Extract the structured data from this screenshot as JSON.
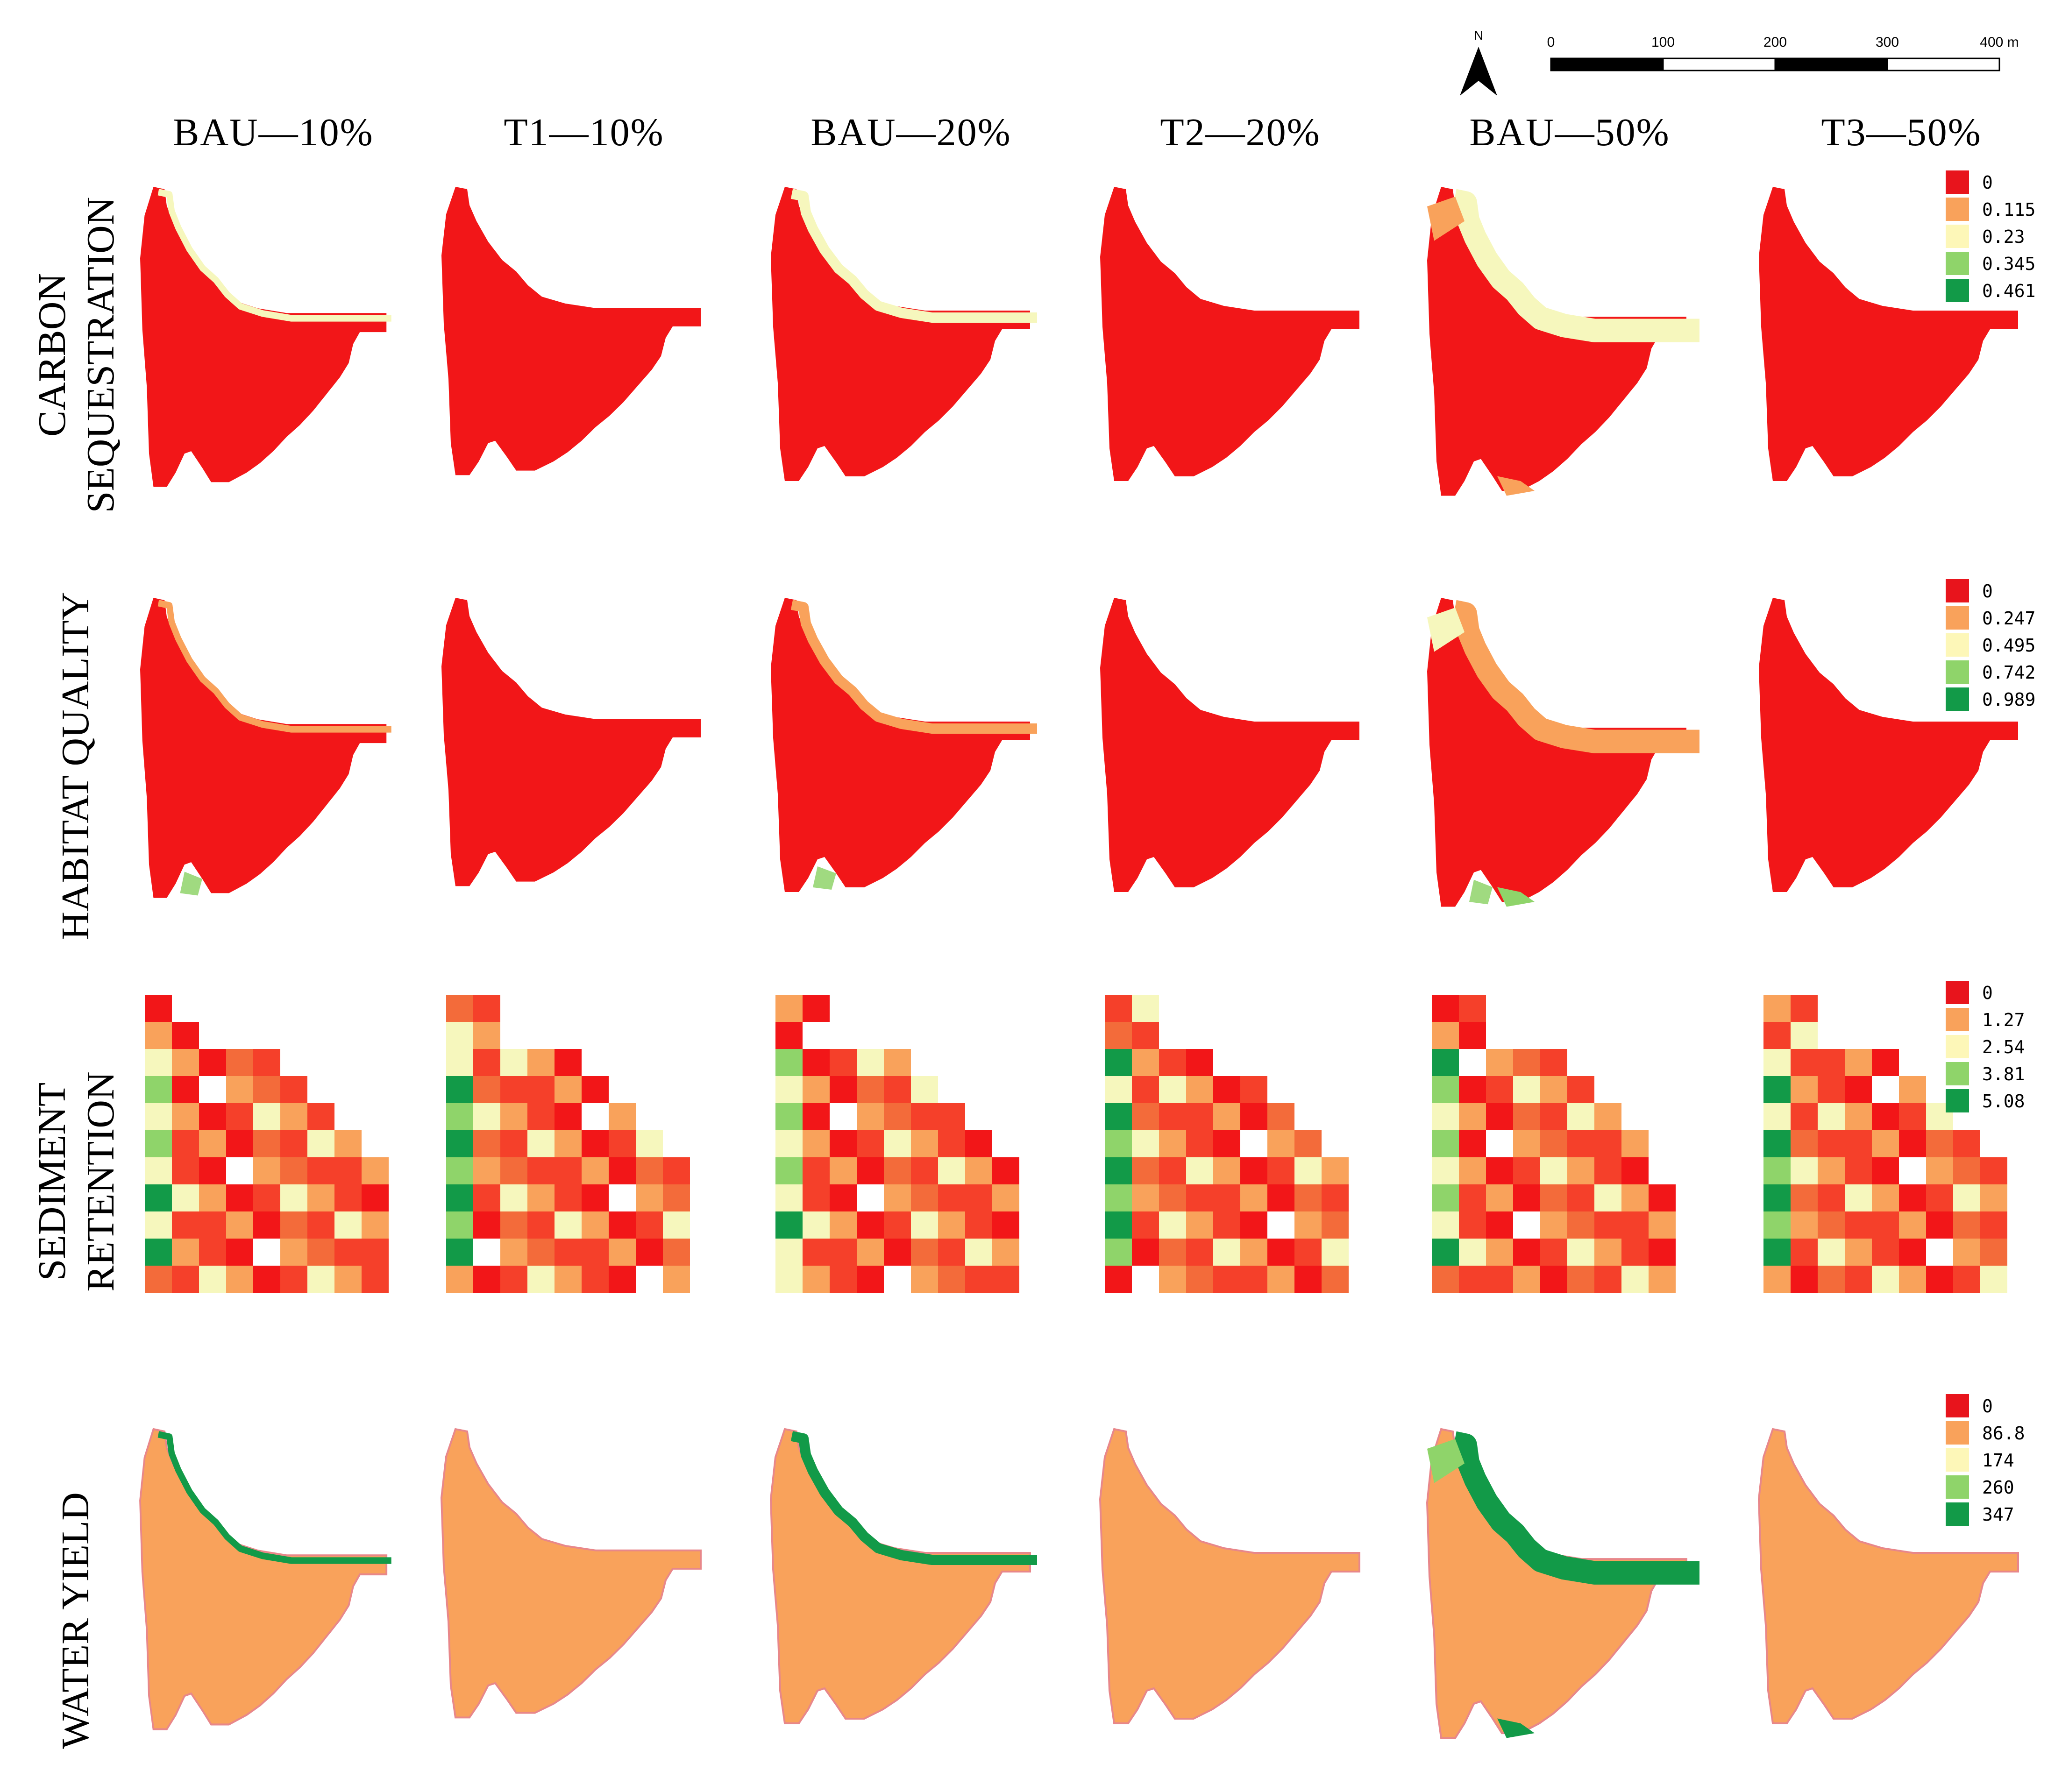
{
  "north_arrow": {
    "label": "N"
  },
  "scale_bar": {
    "ticks": [
      "0",
      "100",
      "200",
      "300",
      "400 m"
    ]
  },
  "columns": [
    "BAU—10%",
    "T1—10%",
    "BAU—20%",
    "T2—20%",
    "BAU—50%",
    "T3—50%"
  ],
  "rows": [
    {
      "label_line1": "CARBON",
      "label_line2": "SEQUESTRATION",
      "legend": [
        "0",
        "0.115",
        "0.23",
        "0.345",
        "0.461"
      ]
    },
    {
      "label_line1": "HABITAT QUALITY",
      "label_line2": "",
      "legend": [
        "0",
        "0.247",
        "0.495",
        "0.742",
        "0.989"
      ]
    },
    {
      "label_line1": "SEDIMENT",
      "label_line2": "RETENTION",
      "legend": [
        "0",
        "1.27",
        "2.54",
        "3.81",
        "5.08"
      ]
    },
    {
      "label_line1": "WATER YIELD",
      "label_line2": "",
      "legend": [
        "0",
        "86.8",
        "174",
        "260",
        "347"
      ]
    }
  ],
  "legend_colors": [
    "#e8141c",
    "#f9a25b",
    "#fdf7b8",
    "#8fd46a",
    "#129a48"
  ],
  "map_colors": {
    "red": "#f21618",
    "orange": "#f9a25b",
    "yellow": "#f6f7bd",
    "light_green": "#8fd46a",
    "green": "#129a48",
    "outline": "#e8878a"
  }
}
